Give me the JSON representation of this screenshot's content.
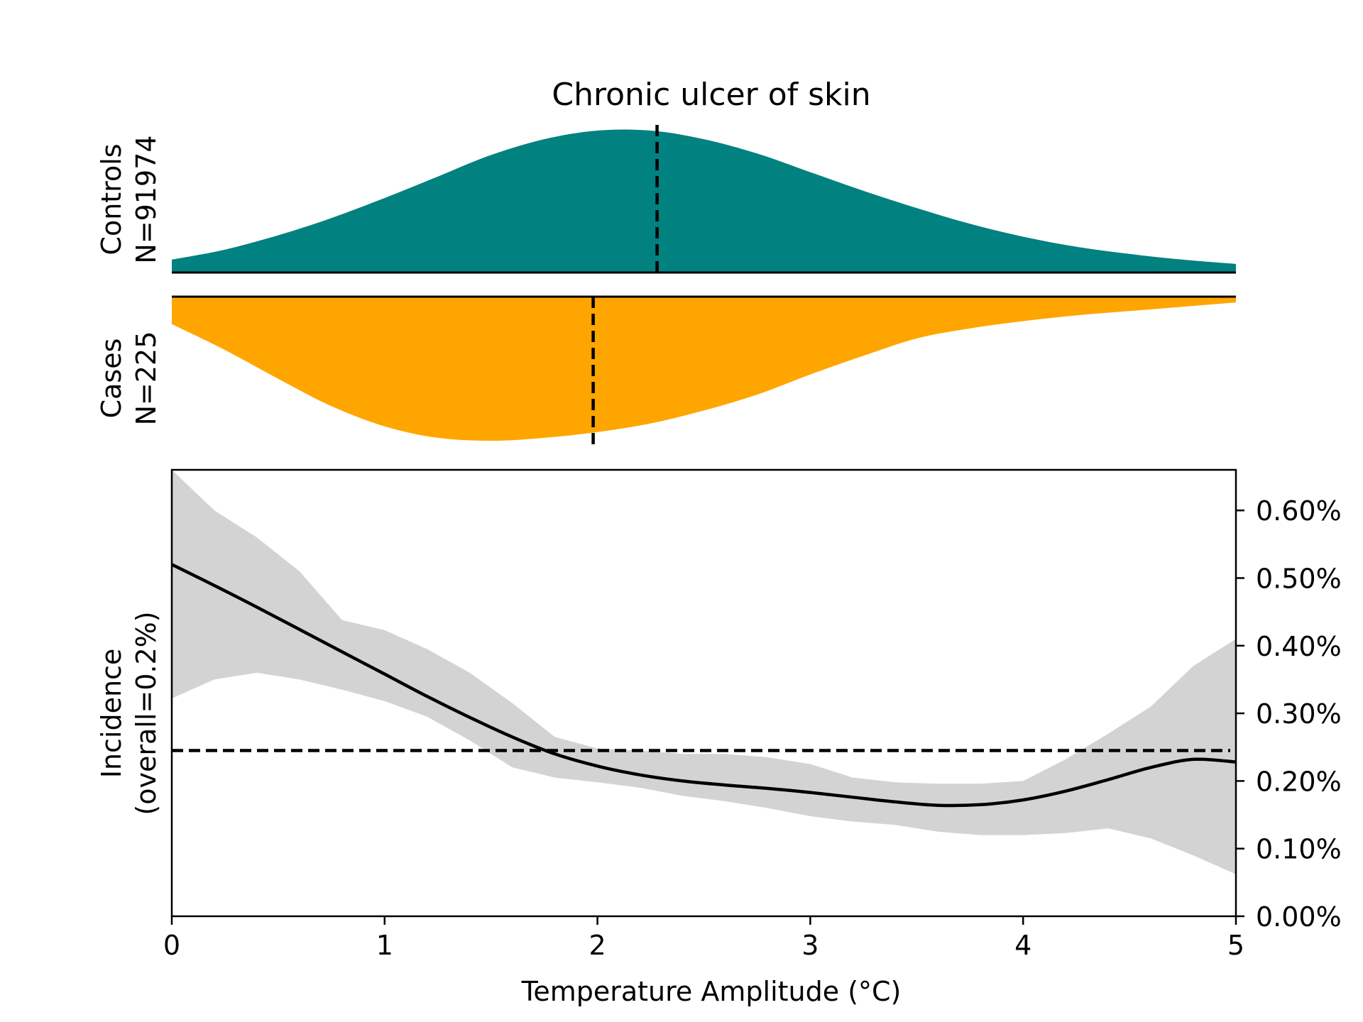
{
  "chart_data": {
    "type": "area",
    "title": "Chronic ulcer of skin",
    "xlabel": "Temperature Amplitude (°C)",
    "xlim": [
      0,
      5
    ],
    "x_ticks": [
      0,
      1,
      2,
      3,
      4,
      5
    ],
    "x_tick_labels": [
      "0",
      "1",
      "2",
      "3",
      "4",
      "5"
    ],
    "distributions": {
      "controls": {
        "label_line1": "Controls",
        "label_line2": "N=91974",
        "color": "#028181",
        "median": 2.28,
        "x": [
          0,
          0.25,
          0.5,
          0.75,
          1.0,
          1.25,
          1.5,
          1.75,
          2.0,
          2.25,
          2.5,
          2.75,
          3.0,
          3.25,
          3.5,
          3.75,
          4.0,
          4.25,
          4.5,
          4.75,
          5.0
        ],
        "density": [
          0.09,
          0.16,
          0.26,
          0.38,
          0.52,
          0.67,
          0.82,
          0.93,
          0.99,
          0.99,
          0.93,
          0.83,
          0.7,
          0.57,
          0.45,
          0.34,
          0.25,
          0.18,
          0.13,
          0.09,
          0.06
        ]
      },
      "cases": {
        "label_line1": "Cases",
        "label_line2": "N=225",
        "color": "#ffa500",
        "median": 1.98,
        "x": [
          0,
          0.25,
          0.5,
          0.75,
          1.0,
          1.25,
          1.5,
          1.75,
          2.0,
          2.25,
          2.5,
          2.75,
          3.0,
          3.25,
          3.5,
          3.75,
          4.0,
          4.25,
          4.5,
          4.75,
          5.0
        ],
        "density": [
          0.19,
          0.37,
          0.57,
          0.76,
          0.9,
          0.98,
          1.0,
          0.98,
          0.94,
          0.88,
          0.79,
          0.68,
          0.54,
          0.41,
          0.29,
          0.22,
          0.17,
          0.13,
          0.1,
          0.07,
          0.04
        ]
      }
    },
    "incidence": {
      "ylabel_line1": "Incidence",
      "ylabel_line2": "(overall=0.2%)",
      "ylim": [
        0,
        0.66
      ],
      "y_ticks": [
        0,
        0.1,
        0.2,
        0.3,
        0.4,
        0.5,
        0.6
      ],
      "y_tick_labels": [
        "0.00%",
        "0.10%",
        "0.20%",
        "0.30%",
        "0.40%",
        "0.50%",
        "0.60%"
      ],
      "y_axis_side": "right",
      "overall": 0.245,
      "line_color": "#000000",
      "band_color": "#d3d3d3",
      "x": [
        0,
        0.2,
        0.4,
        0.6,
        0.8,
        1.0,
        1.2,
        1.4,
        1.6,
        1.8,
        2.0,
        2.2,
        2.4,
        2.6,
        2.8,
        3.0,
        3.2,
        3.4,
        3.6,
        3.8,
        4.0,
        4.2,
        4.4,
        4.6,
        4.8,
        5.0
      ],
      "y": [
        0.52,
        0.489,
        0.457,
        0.424,
        0.391,
        0.358,
        0.325,
        0.294,
        0.265,
        0.24,
        0.222,
        0.209,
        0.2,
        0.194,
        0.189,
        0.183,
        0.176,
        0.169,
        0.164,
        0.165,
        0.172,
        0.185,
        0.202,
        0.22,
        0.232,
        0.228
      ],
      "lower": [
        0.322,
        0.35,
        0.36,
        0.35,
        0.335,
        0.318,
        0.295,
        0.26,
        0.22,
        0.205,
        0.198,
        0.19,
        0.178,
        0.17,
        0.16,
        0.148,
        0.14,
        0.135,
        0.125,
        0.12,
        0.12,
        0.123,
        0.13,
        0.115,
        0.09,
        0.062
      ],
      "upper": [
        0.66,
        0.6,
        0.56,
        0.51,
        0.438,
        0.423,
        0.395,
        0.36,
        0.315,
        0.265,
        0.248,
        0.245,
        0.24,
        0.24,
        0.235,
        0.225,
        0.205,
        0.198,
        0.196,
        0.196,
        0.2,
        0.232,
        0.27,
        0.31,
        0.37,
        0.41
      ]
    }
  }
}
